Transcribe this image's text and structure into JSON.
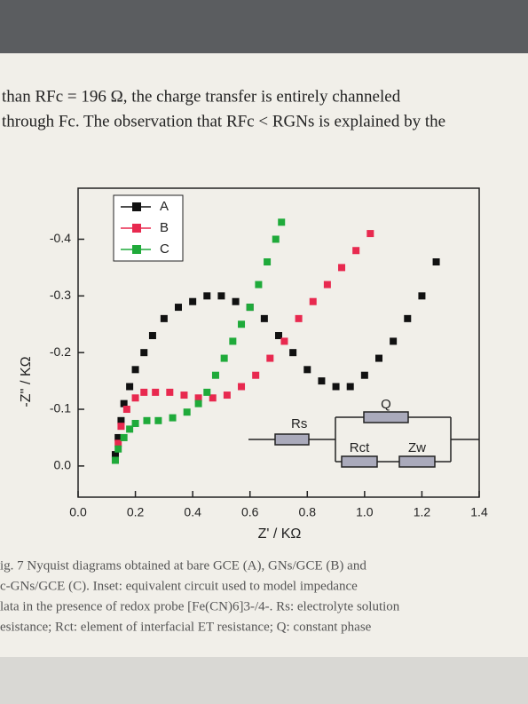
{
  "header": {
    "lines": [
      "than RFc = 196 Ω, the charge transfer is entirely channeled",
      "through Fc. The observation that RFc < RGNs is explained by the"
    ]
  },
  "chart_data": {
    "type": "scatter",
    "x_label": "Z' / KΩ",
    "y_label": "-Z'' / KΩ",
    "xlim": [
      0,
      1.4
    ],
    "ylim": [
      0.055,
      -0.49
    ],
    "xticks": [
      {
        "value": 0,
        "label": "0.0"
      },
      0.2,
      0.4,
      0.6,
      0.8,
      {
        "value": 1,
        "label": "1.0"
      },
      1.2,
      1.4
    ],
    "yticks": [
      {
        "value": 0,
        "label": "0.0"
      },
      -0.1,
      -0.2,
      -0.3,
      -0.4
    ],
    "grid": false,
    "legend": "upper left",
    "series": [
      {
        "name": "A",
        "color": "#111111",
        "x": [
          0.13,
          0.14,
          0.15,
          0.16,
          0.18,
          0.2,
          0.23,
          0.26,
          0.3,
          0.35,
          0.4,
          0.45,
          0.5,
          0.55,
          0.6,
          0.65,
          0.7,
          0.75,
          0.8,
          0.85,
          0.9,
          0.95,
          1.0,
          1.05,
          1.1,
          1.15,
          1.2,
          1.25
        ],
        "values": [
          -0.02,
          -0.05,
          -0.08,
          -0.11,
          -0.14,
          -0.17,
          -0.2,
          -0.23,
          -0.26,
          -0.28,
          -0.29,
          -0.3,
          -0.3,
          -0.29,
          -0.28,
          -0.26,
          -0.23,
          -0.2,
          -0.17,
          -0.15,
          -0.14,
          -0.14,
          -0.16,
          -0.19,
          -0.22,
          -0.26,
          -0.3,
          -0.36
        ]
      },
      {
        "name": "B",
        "color": "#e8294f",
        "x": [
          0.13,
          0.14,
          0.15,
          0.17,
          0.2,
          0.23,
          0.27,
          0.32,
          0.37,
          0.42,
          0.47,
          0.52,
          0.57,
          0.62,
          0.67,
          0.72,
          0.77,
          0.82,
          0.87,
          0.92,
          0.97,
          1.02
        ],
        "values": [
          -0.01,
          -0.04,
          -0.07,
          -0.1,
          -0.12,
          -0.13,
          -0.13,
          -0.13,
          -0.125,
          -0.12,
          -0.12,
          -0.125,
          -0.14,
          -0.16,
          -0.19,
          -0.22,
          -0.26,
          -0.29,
          -0.32,
          -0.35,
          -0.38,
          -0.41
        ]
      },
      {
        "name": "C",
        "color": "#1faa3a",
        "x": [
          0.13,
          0.14,
          0.16,
          0.18,
          0.2,
          0.24,
          0.28,
          0.33,
          0.38,
          0.42,
          0.45,
          0.48,
          0.51,
          0.54,
          0.57,
          0.6,
          0.63,
          0.66,
          0.69,
          0.71
        ],
        "values": [
          -0.01,
          -0.03,
          -0.05,
          -0.065,
          -0.075,
          -0.08,
          -0.08,
          -0.085,
          -0.095,
          -0.11,
          -0.13,
          -0.16,
          -0.19,
          -0.22,
          -0.25,
          -0.28,
          -0.32,
          -0.36,
          -0.4,
          -0.43
        ]
      }
    ],
    "inset": {
      "labels": [
        "Rs",
        "Q",
        "Rct",
        "Zw"
      ]
    }
  },
  "caption": {
    "lines": [
      "ig. 7   Nyquist diagrams obtained at bare GCE (A), GNs/GCE (B) and",
      "c-GNs/GCE (C). Inset: equivalent circuit used to model impedance",
      "lata in the presence of redox probe [Fe(CN)6]3-/4-. Rs: electrolyte solution",
      "esistance; Rct: element of interfacial ET resistance; Q: constant phase"
    ]
  }
}
